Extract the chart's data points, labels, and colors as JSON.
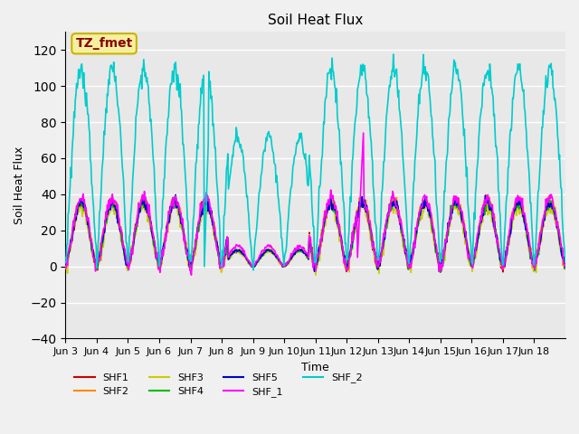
{
  "title": "Soil Heat Flux",
  "ylabel": "Soil Heat Flux",
  "xlabel": "Time",
  "annotation": "TZ_fmet",
  "annotation_bg": "#f5f0a0",
  "annotation_border": "#c8b400",
  "annotation_text_color": "#8b0000",
  "ylim": [
    -40,
    130
  ],
  "yticks": [
    -40,
    -20,
    0,
    20,
    40,
    60,
    80,
    100,
    120
  ],
  "plot_bg": "#e8e8e8",
  "grid_color": "#ffffff",
  "series_colors": {
    "SHF1": "#cc0000",
    "SHF2": "#ff8800",
    "SHF3": "#cccc00",
    "SHF4": "#00bb00",
    "SHF5": "#0000cc",
    "SHF_1": "#ff00ff",
    "SHF_2": "#00cccc"
  },
  "xtick_labels": [
    "Jun 3",
    "Jun 4",
    "Jun 5",
    "Jun 6",
    "Jun 7",
    "Jun 8",
    "Jun 9",
    "Jun 10",
    "Jun 11",
    "Jun 12",
    "Jun 13",
    "Jun 14",
    "Jun 15",
    "Jun 16",
    "Jun 17",
    "Jun 18"
  ],
  "n_days": 16,
  "pts_per_day": 48
}
